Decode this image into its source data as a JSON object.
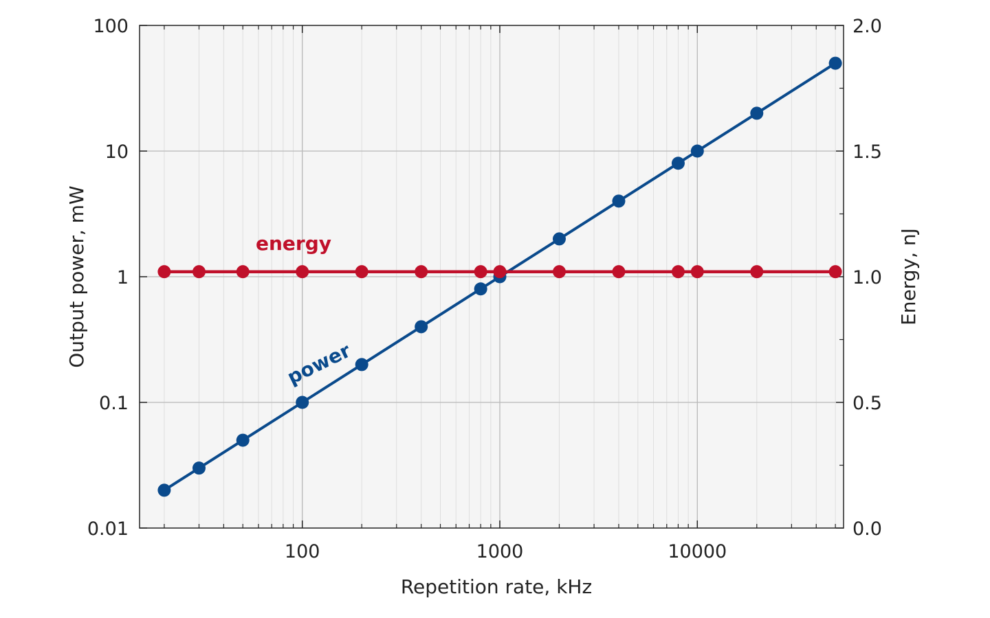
{
  "chart_data": {
    "type": "line",
    "xlabel": "Repetition rate, kHz",
    "ylabel": "Output power, mW",
    "y2label": "Energy, nJ",
    "x_scale": "log",
    "y_scale": "log",
    "y2_scale": "linear",
    "xlim": [
      15,
      55000
    ],
    "ylim": [
      0.01,
      100
    ],
    "y2lim": [
      0.0,
      2.0
    ],
    "x_ticks": [
      100,
      1000,
      10000
    ],
    "x_tick_labels": [
      "100",
      "1000",
      "10000"
    ],
    "y_ticks": [
      0.01,
      0.1,
      1,
      10,
      100
    ],
    "y_tick_labels": [
      "0.01",
      "0.1",
      "1",
      "10",
      "100"
    ],
    "y2_ticks": [
      0.0,
      0.5,
      1.0,
      1.5,
      2.0
    ],
    "y2_tick_labels": [
      "0.0",
      "0.5",
      "1.0",
      "1.5",
      "2.0"
    ],
    "grid": true,
    "legend": "none",
    "series": [
      {
        "name": "power",
        "axis": "left",
        "color": "#0a4a8c",
        "x": [
          20,
          30,
          50,
          100,
          200,
          400,
          800,
          1000,
          2000,
          4000,
          8000,
          10000,
          20000,
          50000
        ],
        "y": [
          0.02,
          0.03,
          0.05,
          0.1,
          0.2,
          0.4,
          0.8,
          1.0,
          2.0,
          4.0,
          8.0,
          10.0,
          20.0,
          50.0
        ]
      },
      {
        "name": "energy",
        "axis": "right",
        "color": "#c0102a",
        "x": [
          20,
          30,
          50,
          100,
          200,
          400,
          800,
          1000,
          2000,
          4000,
          8000,
          10000,
          20000,
          50000
        ],
        "y": [
          1.02,
          1.02,
          1.02,
          1.02,
          1.02,
          1.02,
          1.02,
          1.02,
          1.02,
          1.02,
          1.02,
          1.02,
          1.02,
          1.02
        ]
      }
    ]
  }
}
